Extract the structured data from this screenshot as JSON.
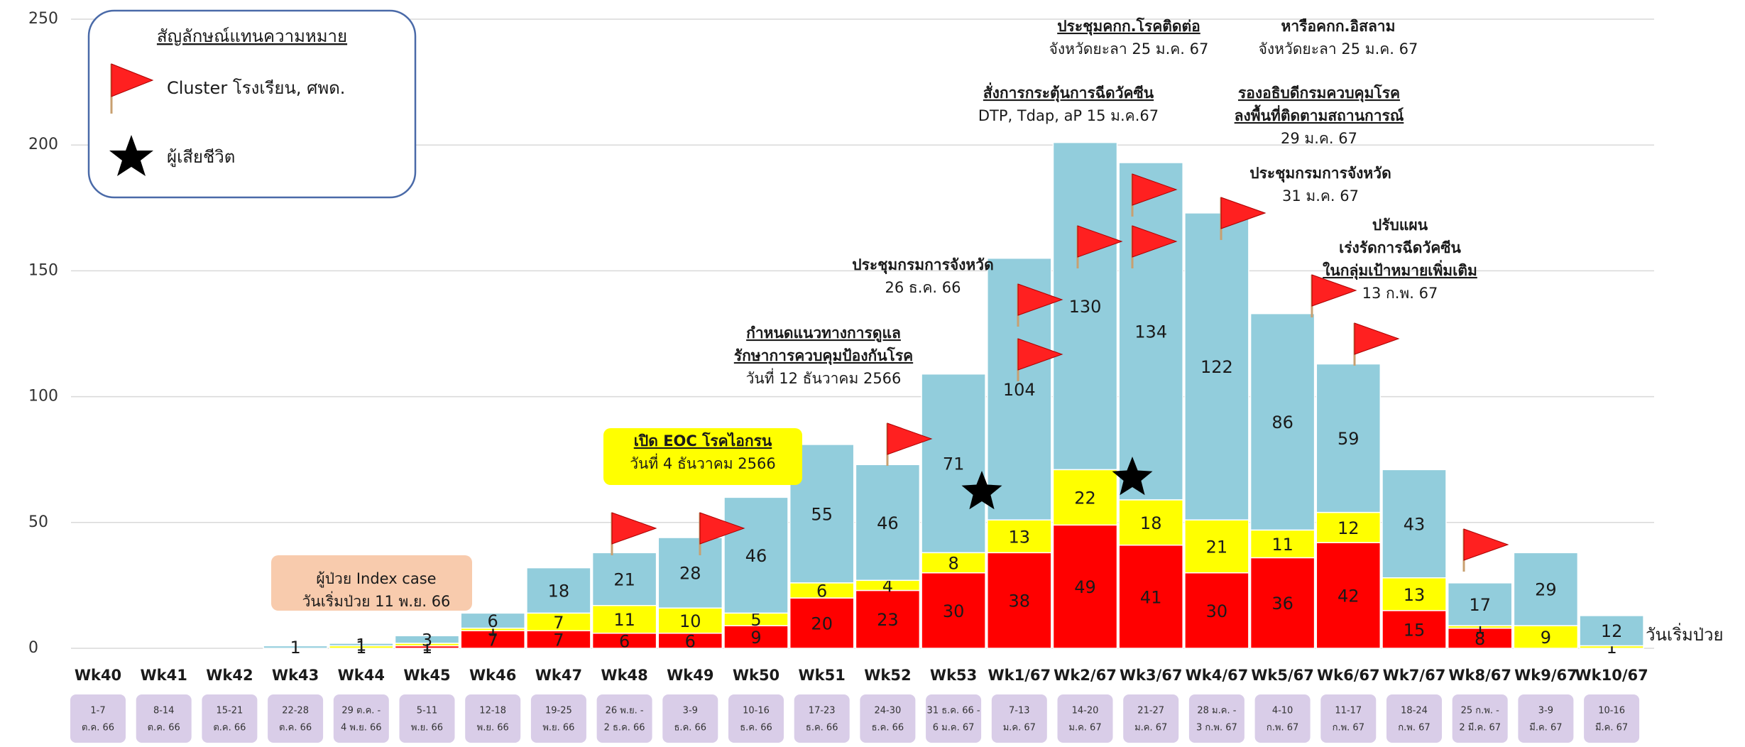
{
  "chart_data": {
    "type": "stacked_bar",
    "categories": [
      "Wk40",
      "Wk41",
      "Wk42",
      "Wk43",
      "Wk44",
      "Wk45",
      "Wk46",
      "Wk47",
      "Wk48",
      "Wk49",
      "Wk50",
      "Wk51",
      "Wk52",
      "Wk53",
      "Wk1/67",
      "Wk2/67",
      "Wk3/67",
      "Wk4/67",
      "Wk5/67",
      "Wk6/67",
      "Wk7/67",
      "Wk8/67",
      "Wk9/67",
      "Wk10/67"
    ],
    "date_ranges": [
      [
        "1-7",
        "ต.ค. 66"
      ],
      [
        "8-14",
        "ต.ค. 66"
      ],
      [
        "15-21",
        "ต.ค. 66"
      ],
      [
        "22-28",
        "ต.ค. 66"
      ],
      [
        "29 ต.ค. -",
        "4 พ.ย. 66"
      ],
      [
        "5-11",
        "พ.ย. 66"
      ],
      [
        "12-18",
        "พ.ย. 66"
      ],
      [
        "19-25",
        "พ.ย. 66"
      ],
      [
        "26 พ.ย. -",
        "2 ธ.ค. 66"
      ],
      [
        "3-9",
        "ธ.ค. 66"
      ],
      [
        "10-16",
        "ธ.ค. 66"
      ],
      [
        "17-23",
        "ธ.ค. 66"
      ],
      [
        "24-30",
        "ธ.ค. 66"
      ],
      [
        "31 ธ.ค. 66 -",
        "6 ม.ค. 67"
      ],
      [
        "7-13",
        "ม.ค. 67"
      ],
      [
        "14-20",
        "ม.ค. 67"
      ],
      [
        "21-27",
        "ม.ค. 67"
      ],
      [
        "28 ม.ค. -",
        "3 ก.พ. 67"
      ],
      [
        "4-10",
        "ก.พ. 67"
      ],
      [
        "11-17",
        "ก.พ. 67"
      ],
      [
        "18-24",
        "ก.พ. 67"
      ],
      [
        "25 ก.พ. -",
        "2 มี.ค. 67"
      ],
      [
        "3-9",
        "มี.ค. 67"
      ],
      [
        "10-16",
        "มี.ค. 67"
      ]
    ],
    "series": [
      {
        "color": "#ff0000",
        "values": [
          0,
          0,
          0,
          0,
          0,
          1,
          7,
          7,
          6,
          6,
          9,
          20,
          23,
          30,
          38,
          49,
          41,
          30,
          36,
          42,
          15,
          8,
          0,
          0
        ]
      },
      {
        "color": "#ffff00",
        "values": [
          0,
          0,
          0,
          0,
          1,
          1,
          1,
          7,
          11,
          10,
          5,
          6,
          4,
          8,
          13,
          22,
          18,
          21,
          11,
          12,
          13,
          1,
          9,
          1
        ]
      },
      {
        "color": "#92cddc",
        "values": [
          0,
          0,
          0,
          1,
          1,
          3,
          6,
          18,
          21,
          28,
          46,
          55,
          46,
          71,
          104,
          130,
          134,
          122,
          86,
          59,
          43,
          17,
          29,
          12
        ]
      }
    ],
    "ylim": [
      0,
      250
    ],
    "yticks": [
      0,
      50,
      100,
      150,
      200,
      250
    ],
    "grid": true,
    "x_label": "วันเริ่มป่วย",
    "legend": {
      "title": "สัญลักษณ์แทนความหมาย",
      "flag": "Cluster โรงเรียน, ศพด.",
      "star": "ผู้เสียชีวิต"
    },
    "annotations": [
      [
        "ประชุมคกก.โรคติดต่อ",
        "จังหวัดยะลา 25 ม.ค. 67"
      ],
      [
        "หารือคกก.อิสลาม",
        "จังหวัดยะลา 25 ม.ค. 67"
      ],
      [
        "สั่งการกระตุ้นการฉีดวัคซีน",
        "DTP, Tdap, aP  15 ม.ค.67"
      ],
      [
        "รองอธิบดีกรมควบคุมโรค",
        "ลงพื้นที่ติดตามสถานการณ์",
        "29 ม.ค. 67"
      ],
      [
        "ประชุมกรมการจังหวัด",
        "31 ม.ค. 67"
      ],
      [
        "ปรับแผน",
        "เร่งรัดการฉีดวัคซีน",
        "ในกลุ่มเป้าหมายเพิ่มเติม",
        "13 ก.พ. 67"
      ],
      [
        "ประชุมกรมการจังหวัด",
        "26 ธ.ค. 66"
      ],
      [
        "กำหนดแนวทางการดูแล",
        "รักษาการควบคุมป้องกันโรค",
        "วันที่ 12 ธันวาคม 2566"
      ],
      [
        "เปิด EOC โรคไอกรน",
        "วันที่ 4 ธันวาคม 2566"
      ],
      [
        "ผู้ป่วย Index case",
        "วันเริ่มป่วย 11 พ.ย. 66"
      ]
    ]
  }
}
